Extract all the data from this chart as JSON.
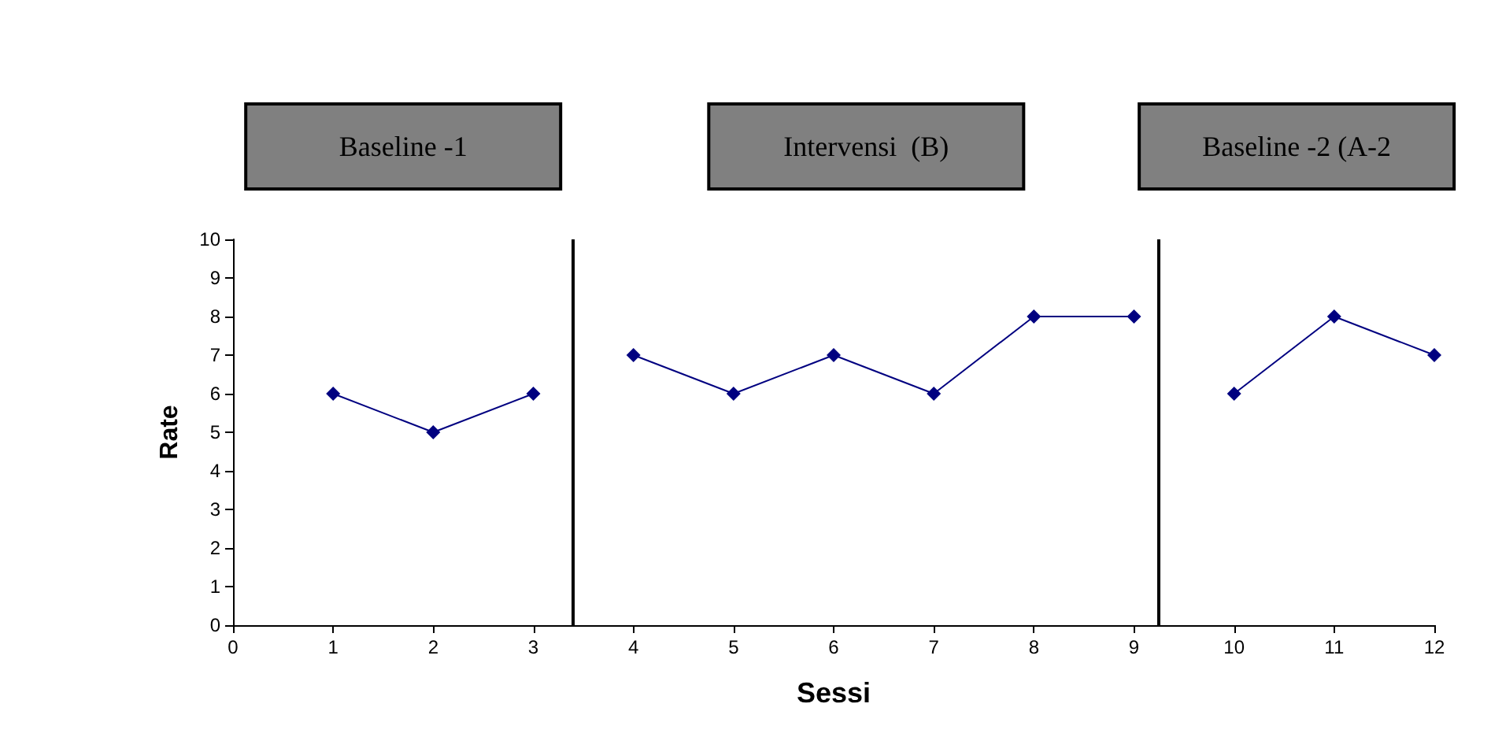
{
  "chart_data": {
    "type": "line",
    "xlabel": "Sessi",
    "ylabel": "Rate",
    "annotations": [
      "Baseline -1",
      "Intervensi  (B)",
      "Baseline -2 (A-2"
    ],
    "series": [
      {
        "color": "#000080",
        "x": [
          1,
          2,
          3
        ],
        "values": [
          6,
          5,
          6
        ]
      },
      {
        "color": "#000080",
        "x": [
          4,
          5,
          6,
          7,
          8,
          9
        ],
        "values": [
          7,
          6,
          7,
          6,
          8,
          8
        ]
      },
      {
        "color": "#000080",
        "x": [
          10,
          11,
          12
        ],
        "values": [
          6,
          8,
          7
        ]
      }
    ],
    "xlim": [
      0,
      12
    ],
    "xticks": [
      0,
      1,
      2,
      3,
      4,
      5,
      6,
      7,
      8,
      9,
      10,
      11,
      12
    ],
    "ylim": [
      0,
      10
    ],
    "yticks": [
      0,
      1,
      2,
      3,
      4,
      5,
      6,
      7,
      8,
      9,
      10
    ],
    "ref_lines": [
      {
        "axis": "x",
        "value": 3.4,
        "color": "#000000"
      },
      {
        "axis": "x",
        "value": 9.25,
        "color": "#000000"
      }
    ],
    "marker": "diamond",
    "line_style": "solid"
  }
}
